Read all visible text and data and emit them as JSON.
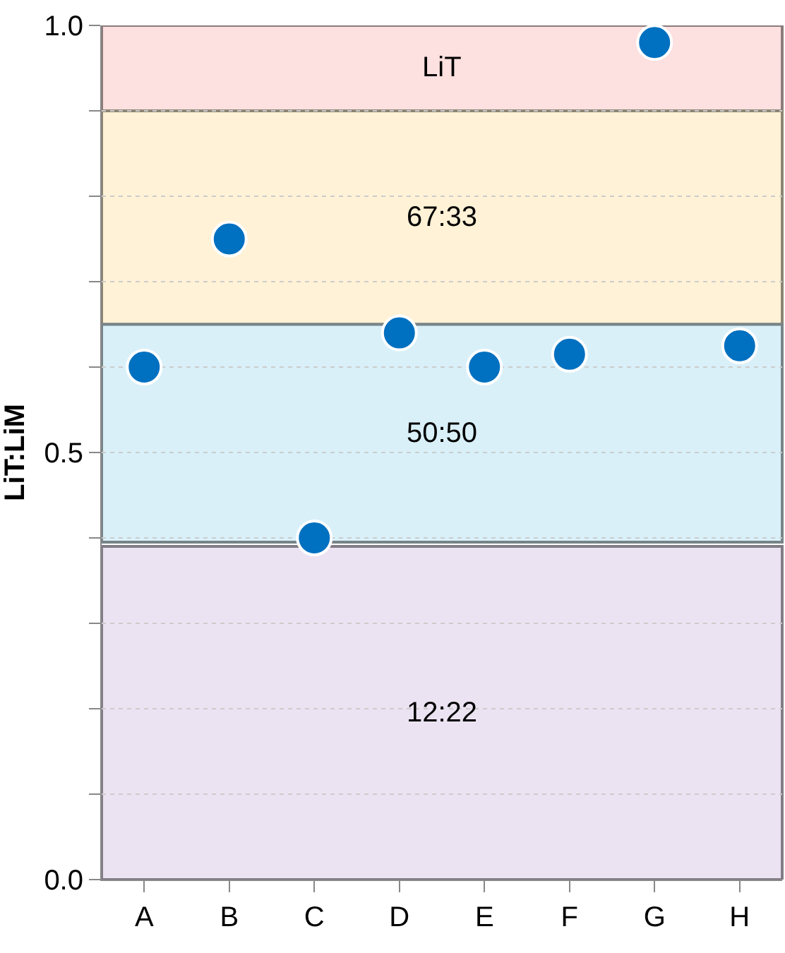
{
  "chart_data": {
    "type": "scatter",
    "ylabel": "LiT:LiM",
    "categories": [
      "A",
      "B",
      "C",
      "D",
      "E",
      "F",
      "G",
      "H"
    ],
    "series": [
      {
        "color": "#0070c0",
        "values": [
          0.6,
          0.75,
          0.4,
          0.64,
          0.6,
          0.615,
          0.98,
          0.625
        ]
      }
    ],
    "ylim": [
      0,
      1
    ],
    "yticks": [
      {
        "value": 0,
        "label": "0.0"
      },
      {
        "value": 0.1,
        "label": null
      },
      {
        "value": 0.2,
        "label": null
      },
      {
        "value": 0.3,
        "label": null
      },
      {
        "value": 0.4,
        "label": null
      },
      {
        "value": 0.5,
        "label": "0.5"
      },
      {
        "value": 0.6,
        "label": null
      },
      {
        "value": 0.7,
        "label": null
      },
      {
        "value": 0.8,
        "label": null
      },
      {
        "value": 0.9,
        "label": null
      },
      {
        "value": 1,
        "label": "1.0"
      }
    ],
    "bands": [
      {
        "axis": "y",
        "from": 0.9,
        "to": 1.0,
        "label": "LiT",
        "color": "#fde0e0"
      },
      {
        "axis": "y",
        "from": 0.65,
        "to": 0.9,
        "label": "67:33",
        "color": "#fff2d6"
      },
      {
        "axis": "y",
        "from": 0.395,
        "to": 0.65,
        "label": "50:50",
        "color": "#d9f0f9"
      },
      {
        "axis": "y",
        "from": 0,
        "to": 0.39,
        "label": "12:22",
        "color": "#ece3f2"
      }
    ],
    "grid": "y",
    "marker": "circle"
  }
}
